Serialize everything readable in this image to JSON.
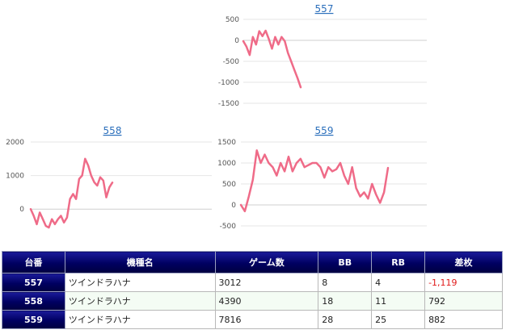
{
  "charts": [
    {
      "title": "557",
      "chart_data": {
        "type": "line",
        "title": "557",
        "ylim": [
          -1500,
          500
        ],
        "yticks": [
          "500",
          "0",
          "-500",
          "-1000",
          "-1500"
        ],
        "series": [
          {
            "values": [
              -20,
              -150,
              -350,
              80,
              -100,
              220,
              100,
              230,
              30,
              -200,
              80,
              -100,
              80,
              -20,
              -300,
              -500,
              -700,
              -900,
              -1119
            ]
          }
        ],
        "color": "#ef6b88"
      }
    },
    {
      "title": "558",
      "chart_data": {
        "type": "line",
        "title": "558",
        "ylim": [
          -500,
          2000
        ],
        "yticks": [
          "2000",
          "1000",
          "0"
        ],
        "series": [
          {
            "values": [
              0,
              -200,
              -450,
              -100,
              -300,
              -500,
              -550,
              -300,
              -450,
              -300,
              -200,
              -400,
              -250,
              300,
              450,
              300,
              900,
              1000,
              1500,
              1300,
              1000,
              800,
              700,
              950,
              850,
              350,
              650,
              792
            ]
          }
        ],
        "color": "#ef6b88"
      }
    },
    {
      "title": "559",
      "chart_data": {
        "type": "line",
        "title": "559",
        "ylim": [
          -500,
          1500
        ],
        "yticks": [
          "1500",
          "1000",
          "500",
          "0",
          "-500"
        ],
        "series": [
          {
            "values": [
              0,
              -150,
              200,
              600,
              1300,
              1000,
              1200,
              1000,
              900,
              700,
              1000,
              800,
              1150,
              800,
              1000,
              1100,
              900,
              950,
              1000,
              1000,
              900,
              650,
              900,
              800,
              850,
              1000,
              700,
              500,
              900,
              400,
              200,
              300,
              150,
              500,
              250,
              50,
              300,
              882
            ]
          }
        ],
        "color": "#ef6b88"
      }
    }
  ],
  "table": {
    "headers": [
      "台番",
      "機種名",
      "ゲーム数",
      "BB",
      "RB",
      "差枚"
    ],
    "rows": [
      {
        "no": "557",
        "name": "ツインドラハナ",
        "games": "3012",
        "bb": "8",
        "rb": "4",
        "diff": "-1,119",
        "negative": true
      },
      {
        "no": "558",
        "name": "ツインドラハナ",
        "games": "4390",
        "bb": "18",
        "rb": "11",
        "diff": "792",
        "negative": false
      },
      {
        "no": "559",
        "name": "ツインドラハナ",
        "games": "7816",
        "bb": "28",
        "rb": "25",
        "diff": "882",
        "negative": false
      }
    ]
  }
}
